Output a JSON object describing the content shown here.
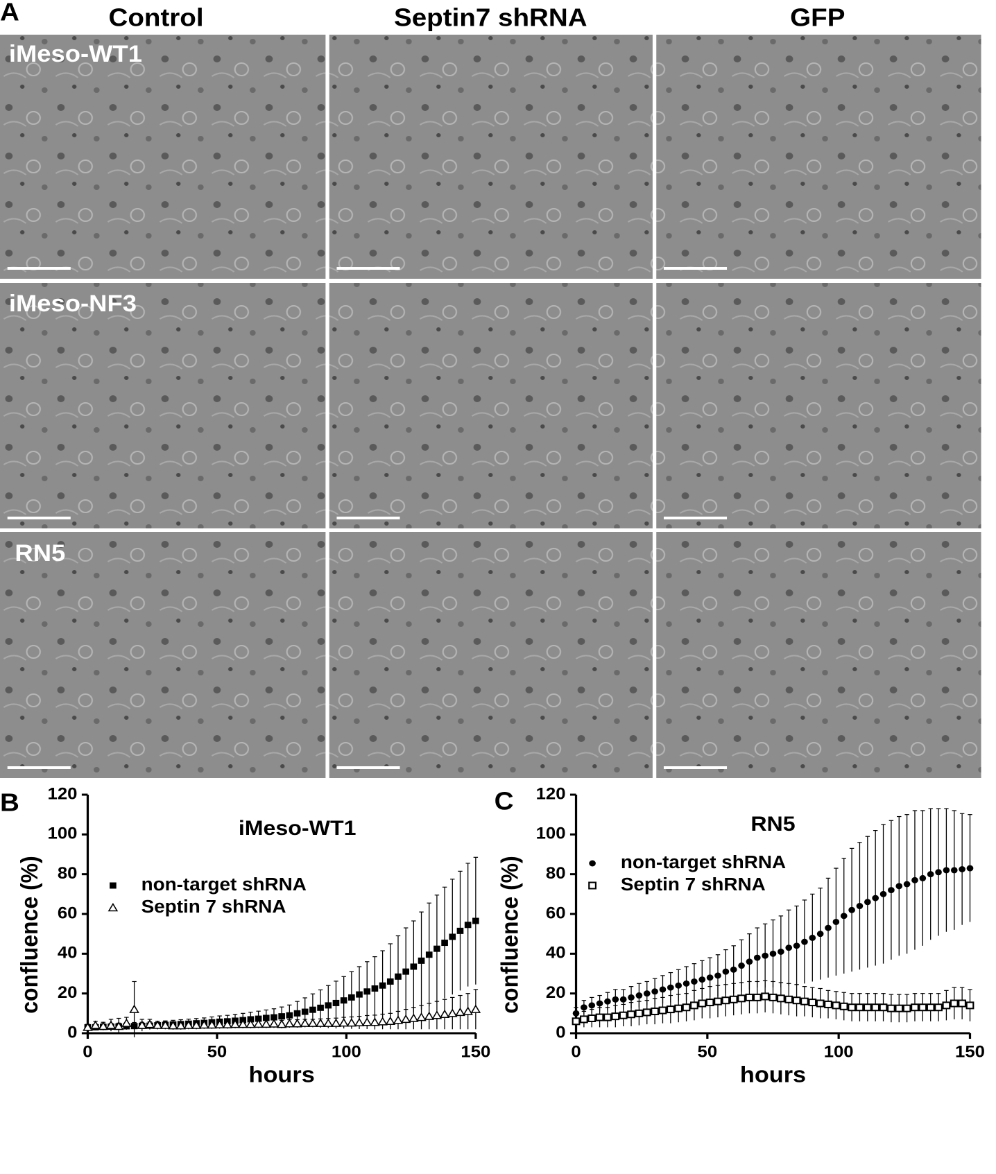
{
  "figure": {
    "panel_labels": [
      "A",
      "B",
      "C"
    ],
    "columns": [
      "Control",
      "Septin7 shRNA",
      "GFP"
    ],
    "rows": [
      "iMeso-WT1",
      "iMeso-NF3",
      "RN5"
    ]
  },
  "chart_data": [
    {
      "type": "scatter",
      "title": "iMeso-WT1",
      "xlabel": "hours",
      "ylabel": "confluence (%)",
      "xlim": [
        0,
        150
      ],
      "xticks": [
        0,
        50,
        100,
        150
      ],
      "ylim": [
        0,
        120
      ],
      "yticks": [
        0,
        20,
        40,
        60,
        80,
        100,
        120
      ],
      "x": [
        0,
        3,
        6,
        9,
        12,
        15,
        18,
        21,
        24,
        27,
        30,
        33,
        36,
        39,
        42,
        45,
        48,
        51,
        54,
        57,
        60,
        63,
        66,
        69,
        72,
        75,
        78,
        81,
        84,
        87,
        90,
        93,
        96,
        99,
        102,
        105,
        108,
        111,
        114,
        117,
        120,
        123,
        126,
        129,
        132,
        135,
        138,
        141,
        144,
        147,
        150
      ],
      "series": [
        {
          "name": "non-target shRNA",
          "color": "#000000",
          "marker": "square-filled",
          "values": [
            3,
            3,
            3.2,
            3.3,
            3.4,
            3.5,
            3.6,
            3.7,
            3.8,
            4,
            4.2,
            4.4,
            4.6,
            4.8,
            5,
            5.2,
            5.5,
            5.8,
            6,
            6.3,
            6.6,
            7,
            7.3,
            7.7,
            8,
            8.5,
            9,
            10,
            10.8,
            11.8,
            12.8,
            14,
            15.2,
            16.5,
            18,
            19.5,
            21,
            22.5,
            24,
            26,
            28.5,
            31,
            33.5,
            36.5,
            39.5,
            42.5,
            45.5,
            48.5,
            51.5,
            54.5,
            56.5
          ],
          "errors": [
            1.5,
            1.5,
            1.6,
            1.6,
            1.7,
            1.7,
            1.8,
            1.8,
            1.9,
            2,
            2,
            2.1,
            2.2,
            2.3,
            2.4,
            2.5,
            2.7,
            2.9,
            3,
            3.2,
            3.4,
            3.6,
            3.8,
            4,
            4.3,
            4.7,
            5.2,
            6,
            7,
            8,
            9,
            10,
            11,
            12,
            13,
            14,
            15,
            16,
            17.5,
            19,
            20.5,
            22,
            23,
            24.5,
            26,
            27,
            28,
            29,
            30,
            31,
            32
          ]
        },
        {
          "name": "Septin 7 shRNA",
          "color": "#000000",
          "marker": "triangle-open",
          "values": [
            3,
            4,
            3.5,
            4,
            3.5,
            5,
            12,
            4,
            4.5,
            4,
            4,
            3.8,
            3.8,
            4,
            4,
            4.2,
            4.2,
            4.3,
            4.3,
            4.5,
            4.5,
            4.5,
            4.6,
            4.6,
            4.7,
            4.5,
            4.8,
            4.8,
            5,
            5,
            5,
            5,
            5,
            5.2,
            5.2,
            5.3,
            5.5,
            5.5,
            5.8,
            6,
            6.5,
            7,
            7.5,
            8,
            8.5,
            9,
            9.5,
            10,
            10.5,
            11,
            12
          ],
          "errors": [
            1.5,
            2,
            2,
            3,
            4,
            3,
            14,
            3,
            2.5,
            2,
            2,
            2,
            2,
            2,
            2,
            2,
            2,
            2,
            2,
            2,
            2,
            2,
            2,
            2,
            2,
            2,
            2,
            2,
            2,
            2,
            2.2,
            2.4,
            2.6,
            2.8,
            3,
            3.2,
            3.4,
            3.6,
            3.8,
            4,
            4.5,
            5,
            5.5,
            6,
            6.5,
            7,
            7.5,
            8,
            8.5,
            9,
            10
          ]
        }
      ]
    },
    {
      "type": "scatter",
      "title": "RN5",
      "xlabel": "hours",
      "ylabel": "confluence (%)",
      "xlim": [
        0,
        150
      ],
      "xticks": [
        0,
        50,
        100,
        150
      ],
      "ylim": [
        0,
        120
      ],
      "yticks": [
        0,
        20,
        40,
        60,
        80,
        100,
        120
      ],
      "x": [
        0,
        3,
        6,
        9,
        12,
        15,
        18,
        21,
        24,
        27,
        30,
        33,
        36,
        39,
        42,
        45,
        48,
        51,
        54,
        57,
        60,
        63,
        66,
        69,
        72,
        75,
        78,
        81,
        84,
        87,
        90,
        93,
        96,
        99,
        102,
        105,
        108,
        111,
        114,
        117,
        120,
        123,
        126,
        129,
        132,
        135,
        138,
        141,
        144,
        147,
        150
      ],
      "series": [
        {
          "name": "non-target shRNA",
          "color": "#000000",
          "marker": "circle-filled",
          "values": [
            10,
            13,
            14,
            15,
            16,
            17,
            17,
            18,
            19,
            20,
            21,
            22,
            23,
            24,
            25,
            26,
            27,
            28,
            29,
            31,
            32,
            34,
            36,
            38,
            39,
            40,
            41,
            43,
            44,
            46,
            48,
            50,
            53,
            56,
            59,
            62,
            64,
            66,
            68,
            70,
            72,
            74,
            75,
            77,
            78,
            80,
            81,
            82,
            82,
            82.5,
            83
          ],
          "errors": [
            3,
            3.5,
            4,
            4,
            4.5,
            5,
            5,
            5.5,
            6,
            6,
            6.5,
            7,
            7.5,
            8,
            8.5,
            9,
            9.5,
            10,
            10.5,
            11,
            12,
            13,
            14,
            15,
            16,
            17,
            18,
            19,
            20,
            21,
            22,
            23,
            25,
            27,
            29,
            31,
            32,
            33,
            34,
            35,
            35,
            35,
            35,
            35,
            34,
            33,
            32,
            31,
            30,
            28,
            27
          ]
        },
        {
          "name": "Septin 7 shRNA",
          "color": "#000000",
          "marker": "square-open",
          "values": [
            6,
            7,
            7.5,
            8,
            8,
            8.5,
            9,
            9.5,
            10,
            10.5,
            11,
            11.5,
            12,
            12.5,
            13,
            14,
            15,
            15.5,
            16,
            16.5,
            17,
            17.5,
            18,
            18,
            18.5,
            18,
            17.5,
            17,
            16.5,
            16,
            15.5,
            15,
            14.5,
            14,
            13.5,
            13,
            13,
            13,
            13,
            13,
            12.5,
            12.5,
            12.5,
            13,
            13,
            13,
            13,
            14,
            15,
            15,
            14
          ],
          "errors": [
            4,
            4,
            4.5,
            5,
            5,
            5.5,
            5.5,
            6,
            6,
            6,
            6.5,
            6.5,
            7,
            7,
            7,
            7.5,
            7.5,
            8,
            8,
            8,
            8,
            8,
            8,
            8,
            8,
            8,
            8,
            8,
            8,
            7.5,
            7.5,
            7.5,
            7,
            7,
            7,
            7,
            7,
            7,
            7,
            7,
            7,
            7,
            7,
            7,
            7,
            7,
            7,
            7.5,
            8,
            8,
            8
          ]
        }
      ]
    }
  ]
}
